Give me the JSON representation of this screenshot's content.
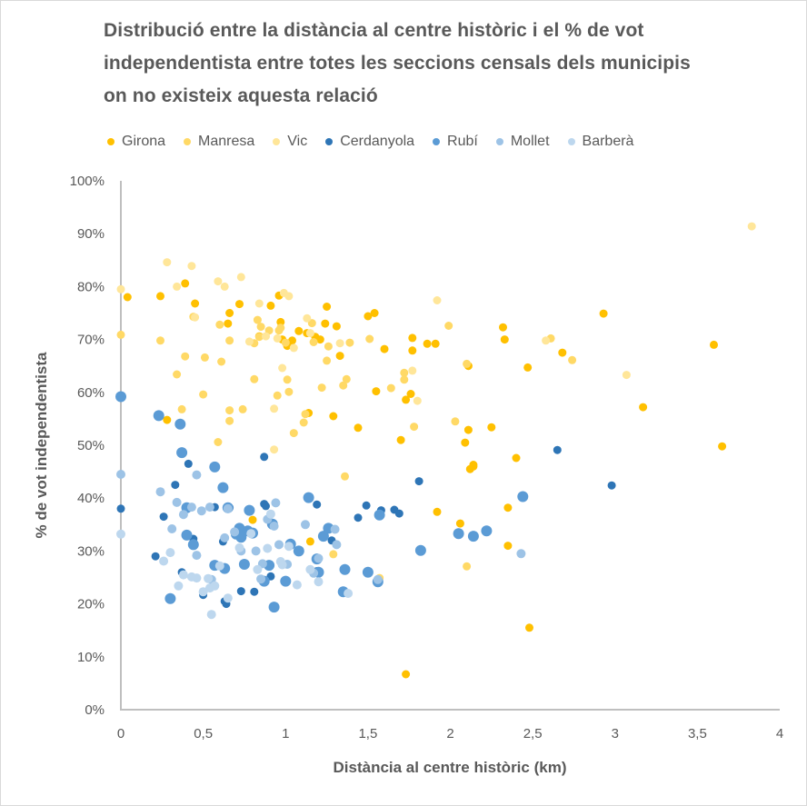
{
  "chart_data": {
    "type": "scatter",
    "title": "Distribució entre la distància al centre històric i el % de vot independentista entre totes les seccions censals dels municipis on no existeix aquesta relació",
    "title_lines": [
      "Distribució entre la distància al centre històric i el % de vot",
      "independentista entre totes les seccions censals dels municipis",
      "on no existeix aquesta relació"
    ],
    "xlabel": "Distància al centre històric (km)",
    "ylabel": "% de vot independentista",
    "xlim": [
      0,
      4
    ],
    "ylim": [
      0,
      100
    ],
    "x_ticks": [
      "0",
      "0,5",
      "1",
      "1,5",
      "2",
      "2,5",
      "3",
      "3,5",
      "4"
    ],
    "y_ticks": [
      "0%",
      "10%",
      "20%",
      "30%",
      "40%",
      "50%",
      "60%",
      "70%",
      "80%",
      "90%",
      "100%"
    ],
    "grid": false,
    "legend_position": "top",
    "series": [
      {
        "name": "Girona",
        "color": "#FFC000",
        "points": [
          [
            0.04,
            78
          ],
          [
            0.24,
            78.2
          ],
          [
            0.39,
            80.6
          ],
          [
            0.45,
            76.8
          ],
          [
            0.66,
            75
          ],
          [
            0.72,
            76.7
          ],
          [
            0.91,
            76.4
          ],
          [
            0.96,
            78.3
          ],
          [
            0.65,
            73
          ],
          [
            0.84,
            70.6
          ],
          [
            0.97,
            73.3
          ],
          [
            0.98,
            70
          ],
          [
            1.01,
            68.8
          ],
          [
            1.04,
            69.8
          ],
          [
            1.08,
            71.6
          ],
          [
            1.13,
            71.2
          ],
          [
            1.18,
            70.5
          ],
          [
            1.21,
            70
          ],
          [
            1.24,
            73
          ],
          [
            1.25,
            76.2
          ],
          [
            1.31,
            72.5
          ],
          [
            1.33,
            66.9
          ],
          [
            1.5,
            74.4
          ],
          [
            1.54,
            75
          ],
          [
            1.6,
            68.2
          ],
          [
            1.77,
            70.3
          ],
          [
            1.77,
            67.9
          ],
          [
            1.86,
            69.2
          ],
          [
            1.91,
            69.2
          ],
          [
            1.55,
            60.2
          ],
          [
            1.76,
            59.7
          ],
          [
            1.73,
            58.6
          ],
          [
            1.29,
            55.5
          ],
          [
            1.14,
            56.1
          ],
          [
            1.44,
            53.3
          ],
          [
            1.7,
            51
          ],
          [
            2.09,
            50.5
          ],
          [
            2.11,
            52.9
          ],
          [
            2.12,
            45.5
          ],
          [
            2.14,
            46
          ],
          [
            2.14,
            46.3
          ],
          [
            2.25,
            53.4
          ],
          [
            2.4,
            47.6
          ],
          [
            2.47,
            64.7
          ],
          [
            2.32,
            72.3
          ],
          [
            2.33,
            70
          ],
          [
            2.68,
            67.5
          ],
          [
            2.93,
            74.9
          ],
          [
            3.17,
            57.2
          ],
          [
            3.6,
            69
          ],
          [
            3.65,
            49.8
          ],
          [
            2.11,
            65
          ],
          [
            0.28,
            54.8
          ],
          [
            0.8,
            35.9
          ],
          [
            1.15,
            31.8
          ],
          [
            1.92,
            37.4
          ],
          [
            2.06,
            35.2
          ],
          [
            2.35,
            38.2
          ],
          [
            2.35,
            31
          ],
          [
            2.48,
            15.5
          ],
          [
            1.73,
            6.7
          ]
        ]
      },
      {
        "name": "Manresa",
        "color": "#FFD966",
        "points": [
          [
            0.0,
            70.9
          ],
          [
            0.24,
            69.8
          ],
          [
            0.34,
            63.4
          ],
          [
            0.39,
            66.8
          ],
          [
            0.44,
            74.3
          ],
          [
            0.5,
            59.6
          ],
          [
            0.51,
            66.6
          ],
          [
            0.59,
            50.6
          ],
          [
            0.61,
            65.8
          ],
          [
            0.66,
            56.6
          ],
          [
            0.66,
            54.6
          ],
          [
            0.66,
            69.8
          ],
          [
            0.74,
            56.8
          ],
          [
            0.81,
            62.5
          ],
          [
            0.81,
            69.3
          ],
          [
            0.84,
            70.5
          ],
          [
            0.85,
            72.4
          ],
          [
            0.9,
            71.7
          ],
          [
            0.95,
            59.4
          ],
          [
            0.96,
            71.7
          ],
          [
            1.0,
            69.4
          ],
          [
            1.01,
            62.4
          ],
          [
            1.02,
            60.1
          ],
          [
            1.05,
            52.3
          ],
          [
            1.11,
            54.3
          ],
          [
            1.12,
            55.9
          ],
          [
            1.16,
            73.1
          ],
          [
            1.17,
            69.5
          ],
          [
            1.22,
            60.9
          ],
          [
            1.26,
            68.7
          ],
          [
            1.25,
            66
          ],
          [
            1.35,
            61.3
          ],
          [
            1.37,
            62.5
          ],
          [
            1.39,
            69.4
          ],
          [
            1.51,
            70.1
          ],
          [
            1.64,
            60.8
          ],
          [
            1.72,
            63.7
          ],
          [
            1.72,
            62.4
          ],
          [
            1.78,
            53.5
          ],
          [
            1.99,
            72.6
          ],
          [
            2.03,
            54.5
          ],
          [
            2.1,
            65.4
          ],
          [
            2.61,
            70.2
          ],
          [
            2.74,
            66.1
          ],
          [
            0.37,
            56.8
          ],
          [
            0.6,
            72.8
          ],
          [
            0.83,
            73.7
          ],
          [
            0.97,
            72.2
          ],
          [
            1.36,
            44.1
          ],
          [
            2.1,
            27.1
          ],
          [
            1.57,
            24.9
          ],
          [
            1.29,
            29.4
          ]
        ]
      },
      {
        "name": "Vic",
        "color": "#FFE699",
        "points": [
          [
            0.0,
            79.5
          ],
          [
            0.28,
            84.6
          ],
          [
            0.34,
            80
          ],
          [
            0.43,
            83.9
          ],
          [
            0.59,
            81
          ],
          [
            0.63,
            80
          ],
          [
            0.73,
            81.8
          ],
          [
            0.84,
            76.8
          ],
          [
            0.99,
            78.8
          ],
          [
            1.02,
            78.2
          ],
          [
            0.45,
            74.2
          ],
          [
            0.78,
            69.6
          ],
          [
            0.88,
            70.6
          ],
          [
            0.95,
            70.2
          ],
          [
            1.13,
            74
          ],
          [
            1.15,
            71.2
          ],
          [
            1.33,
            69.3
          ],
          [
            0.93,
            56.9
          ],
          [
            0.98,
            64.6
          ],
          [
            1.05,
            68.4
          ],
          [
            1.8,
            58.4
          ],
          [
            1.92,
            77.4
          ],
          [
            2.58,
            69.8
          ],
          [
            3.07,
            63.3
          ],
          [
            3.83,
            91.4
          ],
          [
            0.93,
            49.2
          ],
          [
            1.77,
            64.1
          ]
        ]
      },
      {
        "name": "Cerdanyola",
        "color": "#2E75B6",
        "points": [
          [
            0.0,
            38
          ],
          [
            0.21,
            29
          ],
          [
            0.26,
            36.5
          ],
          [
            0.33,
            42.5
          ],
          [
            0.41,
            46.5
          ],
          [
            0.44,
            32.3
          ],
          [
            0.5,
            21.7
          ],
          [
            0.57,
            38.3
          ],
          [
            0.62,
            31.8
          ],
          [
            0.63,
            20.5
          ],
          [
            0.64,
            20
          ],
          [
            0.73,
            22.4
          ],
          [
            0.78,
            37.6
          ],
          [
            0.81,
            22.3
          ],
          [
            0.87,
            38.9
          ],
          [
            0.88,
            38.5
          ],
          [
            0.87,
            47.8
          ],
          [
            0.91,
            25.2
          ],
          [
            1.19,
            38.8
          ],
          [
            1.28,
            32
          ],
          [
            1.44,
            36.3
          ],
          [
            1.49,
            38.6
          ],
          [
            1.58,
            37.7
          ],
          [
            1.66,
            37.8
          ],
          [
            1.69,
            37.1
          ],
          [
            1.81,
            43.2
          ],
          [
            2.65,
            49.1
          ],
          [
            2.98,
            42.4
          ],
          [
            0.37,
            26
          ],
          [
            0.66,
            38.2
          ],
          [
            1.19,
            26.2
          ]
        ]
      },
      {
        "name": "Rubí",
        "color": "#5B9BD5",
        "points": [
          [
            0.0,
            59.2
          ],
          [
            0.23,
            55.6
          ],
          [
            0.3,
            21
          ],
          [
            0.36,
            54
          ],
          [
            0.37,
            48.6
          ],
          [
            0.4,
            38.2
          ],
          [
            0.4,
            33
          ],
          [
            0.44,
            31.2
          ],
          [
            0.57,
            45.9
          ],
          [
            0.57,
            27.3
          ],
          [
            0.62,
            42
          ],
          [
            0.63,
            26.7
          ],
          [
            0.65,
            38.2
          ],
          [
            0.7,
            33.2
          ],
          [
            0.72,
            34.3
          ],
          [
            0.75,
            27.5
          ],
          [
            0.77,
            33.8
          ],
          [
            0.78,
            37.7
          ],
          [
            0.8,
            33.4
          ],
          [
            0.87,
            24.3
          ],
          [
            0.9,
            27.3
          ],
          [
            0.92,
            35.1
          ],
          [
            0.93,
            19.4
          ],
          [
            1.0,
            24.3
          ],
          [
            1.03,
            31.3
          ],
          [
            1.08,
            30
          ],
          [
            1.14,
            40.1
          ],
          [
            1.19,
            28.5
          ],
          [
            1.2,
            26
          ],
          [
            1.26,
            34.3
          ],
          [
            1.35,
            22.3
          ],
          [
            1.36,
            26.5
          ],
          [
            1.5,
            26
          ],
          [
            1.56,
            24.2
          ],
          [
            1.57,
            36.8
          ],
          [
            1.82,
            30.1
          ],
          [
            2.05,
            33.3
          ],
          [
            2.14,
            32.8
          ],
          [
            2.22,
            33.8
          ],
          [
            2.44,
            40.3
          ],
          [
            0.73,
            32.6
          ],
          [
            1.23,
            32.8
          ]
        ]
      },
      {
        "name": "Mollet",
        "color": "#9DC3E6",
        "points": [
          [
            0.0,
            44.5
          ],
          [
            0.24,
            41.2
          ],
          [
            0.34,
            39.2
          ],
          [
            0.38,
            36.9
          ],
          [
            0.43,
            38.3
          ],
          [
            0.46,
            44.4
          ],
          [
            0.49,
            37.6
          ],
          [
            0.54,
            38.3
          ],
          [
            0.55,
            24.6
          ],
          [
            0.63,
            32.5
          ],
          [
            0.65,
            38
          ],
          [
            0.69,
            33.6
          ],
          [
            0.73,
            30
          ],
          [
            0.82,
            30
          ],
          [
            0.86,
            27.6
          ],
          [
            0.89,
            36
          ],
          [
            0.93,
            34.7
          ],
          [
            0.94,
            39.1
          ],
          [
            0.96,
            31.2
          ],
          [
            1.01,
            27.5
          ],
          [
            1.12,
            35
          ],
          [
            1.17,
            25.8
          ],
          [
            1.3,
            34.1
          ],
          [
            1.31,
            31.2
          ],
          [
            1.56,
            24.6
          ],
          [
            2.43,
            29.5
          ],
          [
            0.31,
            34.2
          ],
          [
            0.46,
            29.2
          ],
          [
            0.85,
            24.7
          ],
          [
            1.2,
            28.6
          ]
        ]
      },
      {
        "name": "Barberà",
        "color": "#BDD7EE",
        "points": [
          [
            0.0,
            33.2
          ],
          [
            0.26,
            28.1
          ],
          [
            0.3,
            29.7
          ],
          [
            0.35,
            23.4
          ],
          [
            0.38,
            25.5
          ],
          [
            0.46,
            24.9
          ],
          [
            0.5,
            22.3
          ],
          [
            0.53,
            24.8
          ],
          [
            0.54,
            23
          ],
          [
            0.55,
            18
          ],
          [
            0.57,
            23.4
          ],
          [
            0.6,
            27.2
          ],
          [
            0.65,
            21.1
          ],
          [
            0.72,
            30.6
          ],
          [
            0.79,
            33.3
          ],
          [
            0.83,
            26.5
          ],
          [
            0.89,
            30.5
          ],
          [
            0.91,
            37
          ],
          [
            0.98,
            27.4
          ],
          [
            1.02,
            30.9
          ],
          [
            1.07,
            23.6
          ],
          [
            1.15,
            26.5
          ],
          [
            1.2,
            24.2
          ],
          [
            1.38,
            22
          ],
          [
            0.43,
            25.1
          ],
          [
            0.97,
            28
          ]
        ]
      }
    ]
  }
}
